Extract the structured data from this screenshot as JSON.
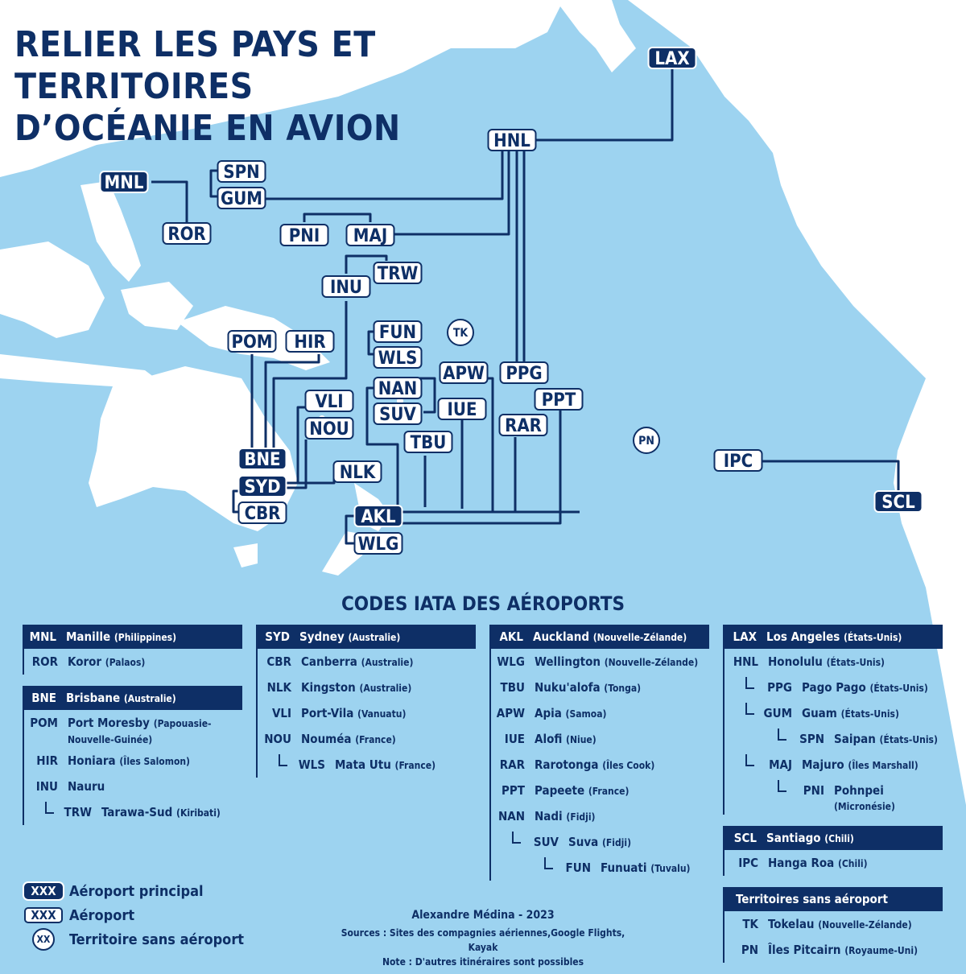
{
  "title": {
    "line1": "RELIER LES PAYS ET TERRITOIRES",
    "line2": "D’OCÉANIE EN AVION"
  },
  "colors": {
    "ocean": "#9dd3f0",
    "land": "#ffffff",
    "navy": "#0e2f66"
  },
  "airports": [
    {
      "code": "LAX",
      "type": "main"
    },
    {
      "code": "HNL",
      "type": "airport"
    },
    {
      "code": "MNL",
      "type": "main"
    },
    {
      "code": "ROR",
      "type": "airport"
    },
    {
      "code": "SPN",
      "type": "airport"
    },
    {
      "code": "GUM",
      "type": "airport"
    },
    {
      "code": "PNI",
      "type": "airport"
    },
    {
      "code": "MAJ",
      "type": "airport"
    },
    {
      "code": "TRW",
      "type": "airport"
    },
    {
      "code": "INU",
      "type": "airport"
    },
    {
      "code": "POM",
      "type": "airport"
    },
    {
      "code": "HIR",
      "type": "airport"
    },
    {
      "code": "FUN",
      "type": "airport"
    },
    {
      "code": "WLS",
      "type": "airport"
    },
    {
      "code": "NAN",
      "type": "airport"
    },
    {
      "code": "SUV",
      "type": "airport"
    },
    {
      "code": "APW",
      "type": "airport"
    },
    {
      "code": "PPG",
      "type": "airport"
    },
    {
      "code": "PPT",
      "type": "airport"
    },
    {
      "code": "IUE",
      "type": "airport"
    },
    {
      "code": "RAR",
      "type": "airport"
    },
    {
      "code": "VLI",
      "type": "airport"
    },
    {
      "code": "NOU",
      "type": "airport"
    },
    {
      "code": "TBU",
      "type": "airport"
    },
    {
      "code": "BNE",
      "type": "main"
    },
    {
      "code": "SYD",
      "type": "main"
    },
    {
      "code": "NLK",
      "type": "airport"
    },
    {
      "code": "CBR",
      "type": "airport"
    },
    {
      "code": "AKL",
      "type": "main"
    },
    {
      "code": "WLG",
      "type": "airport"
    },
    {
      "code": "IPC",
      "type": "airport"
    },
    {
      "code": "SCL",
      "type": "main"
    },
    {
      "code": "TK",
      "type": "no-airport"
    },
    {
      "code": "PN",
      "type": "no-airport"
    }
  ],
  "codes_title": "CODES IATA DES AÉROPORTS",
  "columns": [
    [
      {
        "head": {
          "code": "MNL",
          "name": "Manille",
          "country": "(Philippines)"
        },
        "rows": [
          {
            "code": "ROR",
            "name": "Koror",
            "country": "(Palaos)",
            "level": 0
          }
        ]
      },
      {
        "head": {
          "code": "BNE",
          "name": "Brisbane",
          "country": "(Australie)"
        },
        "rows": [
          {
            "code": "POM",
            "name": "Port Moresby",
            "country": "(Papouasie-Nouvelle-Guinée)",
            "level": 0
          },
          {
            "code": "HIR",
            "name": "Honiara",
            "country": "(Îles Salomon)",
            "level": 0
          },
          {
            "code": "INU",
            "name": "Nauru",
            "country": "",
            "level": 0
          },
          {
            "code": "TRW",
            "name": "Tarawa-Sud",
            "country": "(Kiribati)",
            "level": 1
          }
        ]
      }
    ],
    [
      {
        "head": {
          "code": "SYD",
          "name": "Sydney",
          "country": "(Australie)"
        },
        "rows": [
          {
            "code": "CBR",
            "name": "Canberra",
            "country": "(Australie)",
            "level": 0
          },
          {
            "code": "NLK",
            "name": "Kingston",
            "country": "(Australie)",
            "level": 0
          },
          {
            "code": "VLI",
            "name": "Port-Vila",
            "country": "(Vanuatu)",
            "level": 0
          },
          {
            "code": "NOU",
            "name": "Nouméa",
            "country": "(France)",
            "level": 0
          },
          {
            "code": "WLS",
            "name": "Mata Utu",
            "country": "(France)",
            "level": 1
          }
        ]
      }
    ],
    [
      {
        "head": {
          "code": "AKL",
          "name": "Auckland",
          "country": "(Nouvelle-Zélande)"
        },
        "rows": [
          {
            "code": "WLG",
            "name": "Wellington",
            "country": "(Nouvelle-Zélande)",
            "level": 0
          },
          {
            "code": "TBU",
            "name": "Nuku'alofa",
            "country": "(Tonga)",
            "level": 0
          },
          {
            "code": "APW",
            "name": "Apia",
            "country": "(Samoa)",
            "level": 0
          },
          {
            "code": "IUE",
            "name": "Alofi",
            "country": "(Niue)",
            "level": 0
          },
          {
            "code": "RAR",
            "name": "Rarotonga",
            "country": "(Îles Cook)",
            "level": 0
          },
          {
            "code": "PPT",
            "name": "Papeete",
            "country": "(France)",
            "level": 0
          },
          {
            "code": "NAN",
            "name": "Nadi",
            "country": "(Fidji)",
            "level": 0
          },
          {
            "code": "SUV",
            "name": "Suva",
            "country": "(Fidji)",
            "level": 1
          },
          {
            "code": "FUN",
            "name": "Funuati",
            "country": "(Tuvalu)",
            "level": 2
          }
        ]
      }
    ],
    [
      {
        "head": {
          "code": "LAX",
          "name": "Los Angeles",
          "country": "(États-Unis)"
        },
        "rows": [
          {
            "code": "HNL",
            "name": "Honolulu",
            "country": "(États-Unis)",
            "level": 0
          },
          {
            "code": "PPG",
            "name": "Pago Pago",
            "country": "(États-Unis)",
            "level": 1
          },
          {
            "code": "GUM",
            "name": "Guam",
            "country": "(États-Unis)",
            "level": 1
          },
          {
            "code": "SPN",
            "name": "Saipan",
            "country": "(États-Unis)",
            "level": 2
          },
          {
            "code": "MAJ",
            "name": "Majuro",
            "country": "(Îles Marshall)",
            "level": 1
          },
          {
            "code": "PNI",
            "name": "Pohnpei",
            "country": "(Micronésie)",
            "level": 2
          }
        ]
      },
      {
        "head": {
          "code": "SCL",
          "name": "Santiago",
          "country": "(Chili)"
        },
        "rows": [
          {
            "code": "IPC",
            "name": "Hanga Roa",
            "country": "(Chili)",
            "level": 0
          }
        ]
      },
      {
        "head": {
          "code": "",
          "name": "Territoires sans aéroport",
          "country": ""
        },
        "rows": [
          {
            "code": "TK",
            "name": "Tokelau",
            "country": "(Nouvelle-Zélande)",
            "level": 0
          },
          {
            "code": "PN",
            "name": "Îles Pitcairn",
            "country": "(Royaume-Uni)",
            "level": 0
          }
        ]
      }
    ]
  ],
  "legend": {
    "main": {
      "sample": "XXX",
      "label": "Aéroport principal"
    },
    "airport": {
      "sample": "XXX",
      "label": "Aéroport"
    },
    "no_airport": {
      "sample": "XX",
      "label": "Territoire sans aéroport"
    }
  },
  "credits": {
    "author": "Alexandre Médina - 2023",
    "sources": "Sources : Sites des compagnies aériennes,Google Flights, Kayak",
    "note": "Note : D'autres itinéraires sont possibles"
  }
}
